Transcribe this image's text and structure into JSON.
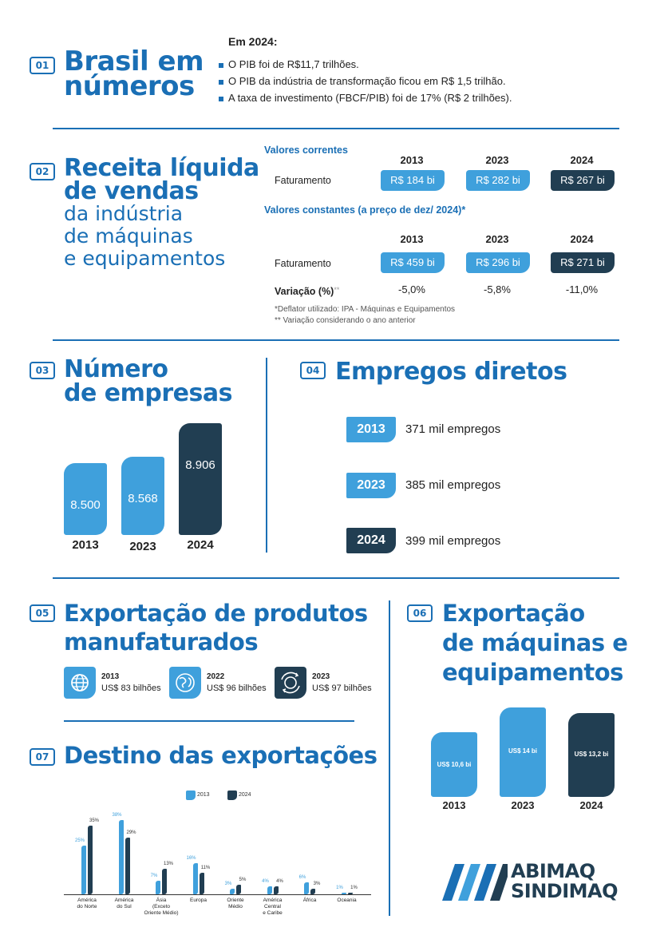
{
  "s01": {
    "badge": "01",
    "title_line1": "Brasil em",
    "title_line2": "números",
    "intro": "Em 2024:",
    "bullets": [
      "O PIB foi de R$11,7 trilhões.",
      "O PIB da indústria de transformação ficou em R$ 1,5 trilhão.",
      "A taxa de investimento (FBCF/PIB) foi de 17% (R$ 2 trilhões)."
    ]
  },
  "s02": {
    "badge": "02",
    "title_line1": "Receita líquida",
    "title_line2": "de vendas",
    "sub_line1": "da indústria",
    "sub_line2": "de máquinas",
    "sub_line3": "e equipamentos",
    "current_label": "Valores correntes",
    "constant_label": "Valores constantes (a preço de dez/ 2024)*",
    "years": [
      "2013",
      "2023",
      "2024"
    ],
    "faturamento_label": "Faturamento",
    "current_values": [
      "R$ 184 bi",
      "R$ 282 bi",
      "R$ 267 bi"
    ],
    "constant_values": [
      "R$ 459 bi",
      "R$ 296 bi",
      "R$ 271 bi"
    ],
    "variacao_label": "Variação (%)",
    "variacao_stars": "**",
    "variacao_values": [
      "-5,0%",
      "-5,8%",
      "-11,0%"
    ],
    "note1": "*Deflator utilizado: IPA - Máquinas e Equipamentos",
    "note2": "**  Variação considerando o ano anterior"
  },
  "s03": {
    "badge": "03",
    "title_line1": "Número",
    "title_line2": "de empresas",
    "chart_data": {
      "type": "bar",
      "categories": [
        "2013",
        "2023",
        "2024"
      ],
      "values": [
        8500,
        8568,
        8906
      ],
      "value_labels": [
        "8.500",
        "8.568",
        "8.906"
      ]
    }
  },
  "s04": {
    "badge": "04",
    "title": "Empregos diretos",
    "rows": [
      {
        "year": "2013",
        "text": "371 mil empregos"
      },
      {
        "year": "2023",
        "text": "385 mil empregos"
      },
      {
        "year": "2024",
        "text": "399 mil empregos"
      }
    ]
  },
  "s05": {
    "badge": "05",
    "title_line1": "Exportação de produtos",
    "title_line2": "manufaturados",
    "items": [
      {
        "year": "2013",
        "value": "US$ 83 bilhões",
        "icon": "globe-icon"
      },
      {
        "year": "2022",
        "value": "US$ 96 bilhões",
        "icon": "world-map-icon"
      },
      {
        "year": "2023",
        "value": "US$ 97 bilhões",
        "icon": "globe-arrows-icon"
      }
    ]
  },
  "s06": {
    "badge": "06",
    "title_line1": "Exportação",
    "title_line2": "de máquinas e",
    "title_line3": "equipamentos",
    "chart_data": {
      "type": "bar",
      "categories": [
        "2013",
        "2023",
        "2024"
      ],
      "values": [
        10.6,
        14,
        13.2
      ],
      "value_labels": [
        "US$ 10,6 bi",
        "US$ 14 bi",
        "US$ 13,2 bi"
      ]
    }
  },
  "s07": {
    "badge": "07",
    "title": "Destino das exportações",
    "chart_data": {
      "type": "bar",
      "categories": [
        "América do Norte",
        "América do Sul",
        "Ásia (Exceto Oriente Médio)",
        "Europa",
        "Oriente Médio",
        "América Central e Caribe",
        "África",
        "Oceania"
      ],
      "category_lines": [
        [
          "América",
          "do Norte"
        ],
        [
          "América",
          "do Sul"
        ],
        [
          "Ásia",
          "(Exceto",
          "Oriente Médio)"
        ],
        [
          "Europa"
        ],
        [
          "Oriente",
          "Médio"
        ],
        [
          "América",
          "Central",
          "e Caribe"
        ],
        [
          "África"
        ],
        [
          "Oceania"
        ]
      ],
      "series": [
        {
          "name": "2013",
          "values": [
            25,
            38,
            7,
            16,
            3,
            4,
            6,
            1
          ]
        },
        {
          "name": "2024",
          "values": [
            35,
            29,
            13,
            11,
            5,
            4,
            3,
            1
          ]
        }
      ],
      "legend": "top"
    }
  },
  "logo": {
    "line1": "ABIMAQ",
    "line2": "SINDIMAQ"
  },
  "colors": {
    "primary": "#1a6fb5",
    "light": "#3fa0dc",
    "dark": "#213e52"
  }
}
